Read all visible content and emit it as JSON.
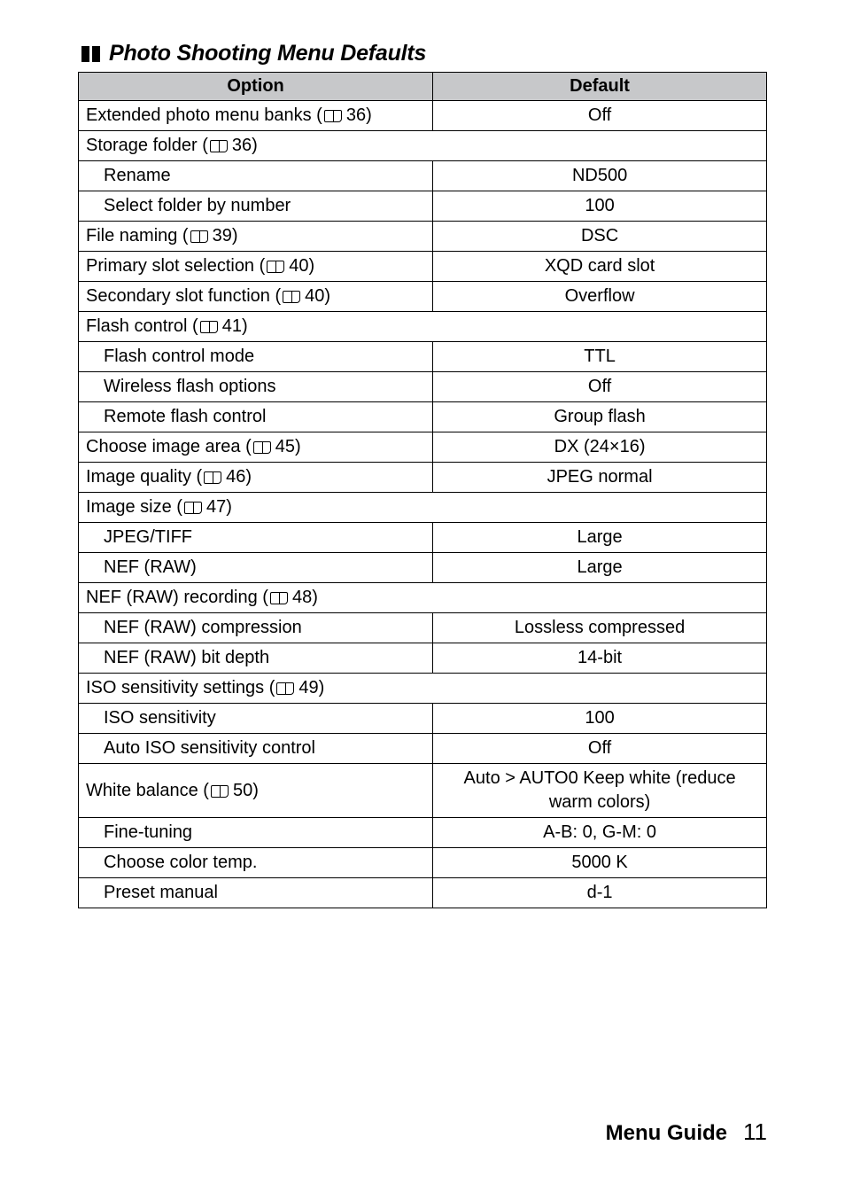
{
  "heading": "Photo Shooting Menu Defaults",
  "columns": {
    "option": "Option",
    "default": "Default"
  },
  "rows": [
    {
      "type": "row",
      "option": "Extended photo menu banks (",
      "ref": "36",
      "optionTail": ")",
      "default": "Off"
    },
    {
      "type": "header",
      "option": "Storage folder (",
      "ref": "36",
      "optionTail": ")"
    },
    {
      "type": "sub",
      "option": "Rename",
      "default": "ND500"
    },
    {
      "type": "sub",
      "option": "Select folder by number",
      "default": "100"
    },
    {
      "type": "row",
      "option": "File naming (",
      "ref": "39",
      "optionTail": ")",
      "default": "DSC"
    },
    {
      "type": "row",
      "option": "Primary slot selection (",
      "ref": "40",
      "optionTail": ")",
      "default": "XQD card slot"
    },
    {
      "type": "row",
      "option": "Secondary slot function (",
      "ref": "40",
      "optionTail": ")",
      "default": "Overflow"
    },
    {
      "type": "header",
      "option": "Flash control (",
      "ref": "41",
      "optionTail": ")"
    },
    {
      "type": "sub",
      "option": "Flash control mode",
      "default": "TTL"
    },
    {
      "type": "sub",
      "option": "Wireless flash options",
      "default": "Off"
    },
    {
      "type": "sub",
      "option": "Remote flash control",
      "default": "Group flash"
    },
    {
      "type": "row",
      "option": "Choose image area (",
      "ref": "45",
      "optionTail": ")",
      "default": "DX (24×16)"
    },
    {
      "type": "row",
      "option": "Image quality (",
      "ref": "46",
      "optionTail": ")",
      "default": "JPEG normal"
    },
    {
      "type": "header",
      "option": "Image size (",
      "ref": "47",
      "optionTail": ")"
    },
    {
      "type": "sub",
      "option": "JPEG/TIFF",
      "default": "Large"
    },
    {
      "type": "sub",
      "option": "NEF (RAW)",
      "default": "Large"
    },
    {
      "type": "header",
      "option": "NEF (RAW) recording (",
      "ref": "48",
      "optionTail": ")"
    },
    {
      "type": "sub",
      "option": "NEF (RAW) compression",
      "default": "Lossless compressed"
    },
    {
      "type": "sub",
      "option": "NEF (RAW) bit depth",
      "default": "14-bit"
    },
    {
      "type": "header",
      "option": "ISO sensitivity settings (",
      "ref": "49",
      "optionTail": ")"
    },
    {
      "type": "sub",
      "option": "ISO sensitivity",
      "default": "100"
    },
    {
      "type": "sub",
      "option": "Auto ISO sensitivity control",
      "default": "Off"
    },
    {
      "type": "row",
      "option": "White balance (",
      "ref": "50",
      "optionTail": ")",
      "default": "Auto > AUTO0 Keep white (reduce warm colors)"
    },
    {
      "type": "sub",
      "option": "Fine-tuning",
      "default": "A-B: 0, G-M: 0"
    },
    {
      "type": "sub",
      "option": "Choose color temp.",
      "default": "5000 K"
    },
    {
      "type": "sub",
      "option": "Preset manual",
      "default": "d-1"
    }
  ],
  "footer": {
    "label": "Menu Guide",
    "page": "11"
  }
}
